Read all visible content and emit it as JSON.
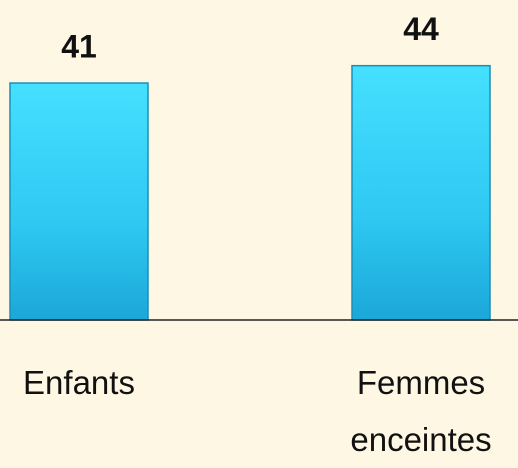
{
  "chart_data": {
    "type": "bar",
    "categories": [
      "Enfants",
      "Femmes enceintes"
    ],
    "values": [
      41,
      44
    ],
    "color": "#29c4ef"
  }
}
